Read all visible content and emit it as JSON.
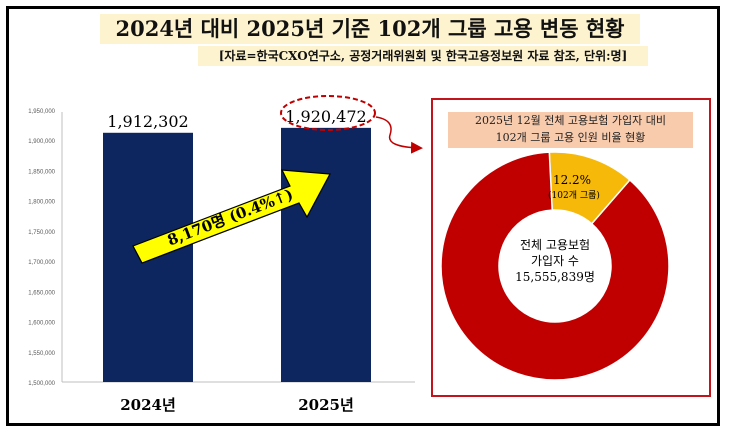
{
  "header": {
    "title": "2024년 대비 2025년 기준 102개 그룹 고용 변동 현황",
    "subtitle": "[자료=한국CXO연구소, 공정거래위원회 및 한국고용정보원 자료 참조, 단위:명]"
  },
  "chart_data": [
    {
      "type": "bar",
      "categories": [
        "2024년",
        "2025년"
      ],
      "values": [
        1912302,
        1920472
      ],
      "data_labels": [
        "1,912,302",
        "1,920,472"
      ],
      "ylim": [
        1500000,
        1950000
      ],
      "yticks": [
        "1,500,000",
        "1,550,000",
        "1,600,000",
        "1,650,000",
        "1,700,000",
        "1,750,000",
        "1,800,000",
        "1,850,000",
        "1,900,000",
        "1,950,000"
      ],
      "bar_color": "#0d2660",
      "grid": false,
      "annotation": "8,170명 (0.4%↑)",
      "annotation_color": "#ffff00"
    },
    {
      "type": "pie",
      "title": "2025년 12월 전체 고용보험 가입자 대비\n102개 그룹 고용 인원 비율 현황",
      "slices": [
        {
          "label_value": "12.2%",
          "label_name": "(102개 그룹)",
          "value": 12.2,
          "color": "#f6b90a"
        },
        {
          "label_value": "전체 고용보험",
          "label_name": "가입자 수",
          "label_extra": "15,555,839명",
          "value": 87.8,
          "color": "#c00000"
        }
      ]
    }
  ]
}
